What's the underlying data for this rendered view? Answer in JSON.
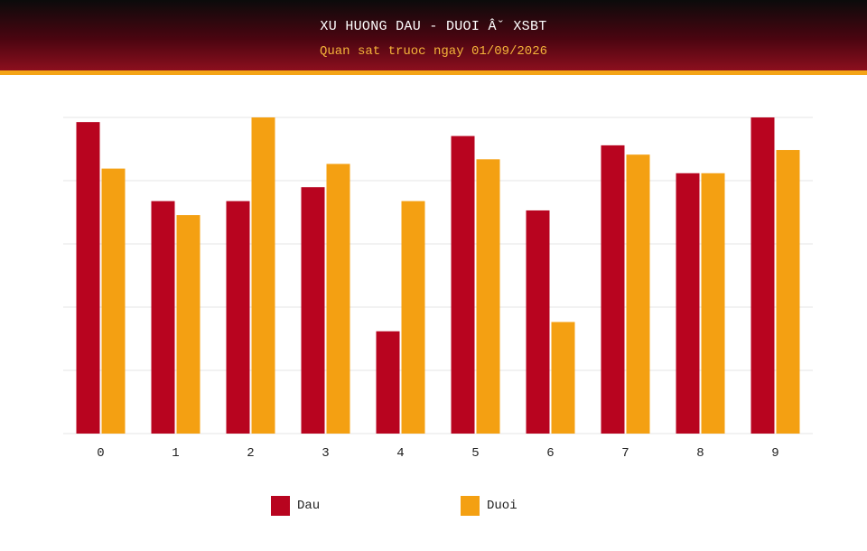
{
  "header": {
    "title": "XU HUONG DAU - DUOI Âˇ XSBT",
    "subtitle": "Quan sat truoc ngay 01/09/2026"
  },
  "colors": {
    "dau": "#b8041f",
    "duoi": "#f4a012",
    "grid": "#e6e6e6",
    "accent": "#f4a416"
  },
  "legend": [
    {
      "label": "Dau",
      "color": "#b8041f"
    },
    {
      "label": "Duoi",
      "color": "#f4a012"
    }
  ],
  "chart_data": {
    "type": "bar",
    "title": "XU HUONG DAU - DUOI Âˇ XSBT",
    "subtitle": "Quan sat truoc ngay 01/09/2026",
    "categories": [
      "0",
      "1",
      "2",
      "3",
      "4",
      "5",
      "6",
      "7",
      "8",
      "9"
    ],
    "series": [
      {
        "name": "Dau",
        "values": [
          67,
          50,
          50,
          53,
          22,
          64,
          48,
          62,
          56,
          68
        ]
      },
      {
        "name": "Duoi",
        "values": [
          57,
          47,
          68,
          58,
          50,
          59,
          24,
          60,
          56,
          61
        ]
      }
    ],
    "ylim": [
      0,
      68
    ],
    "grid": true,
    "legend_position": "bottom"
  }
}
